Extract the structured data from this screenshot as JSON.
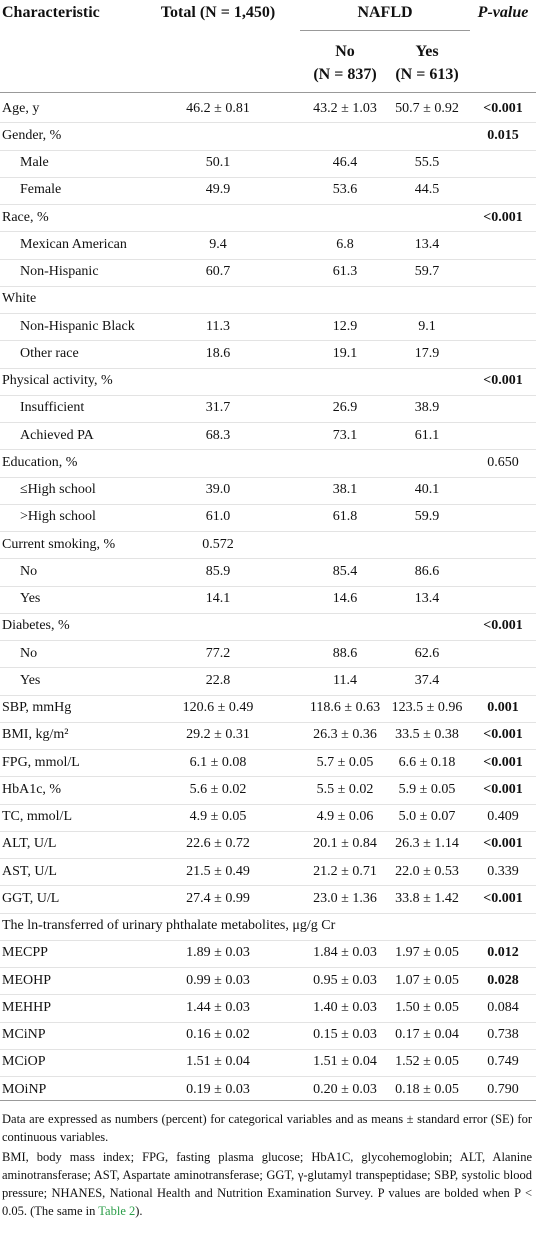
{
  "table": {
    "header": {
      "characteristic": "Characteristic",
      "total": "Total (N = 1,450)",
      "group": "NAFLD",
      "p": "P-value",
      "no": "No",
      "no_n": "(N = 837)",
      "yes": "Yes",
      "yes_n": "(N = 613)"
    },
    "rows": [
      {
        "label": "Age, y",
        "total": "46.2 ± 0.81",
        "no": "43.2 ± 1.03",
        "yes": "50.7 ± 0.92",
        "p": "<0.001",
        "p_bold": true
      },
      {
        "label": "Gender, %",
        "p": "0.015",
        "p_bold": true
      },
      {
        "label": "Male",
        "total": "50.1",
        "no": "46.4",
        "yes": "55.5",
        "indent": true
      },
      {
        "label": "Female",
        "total": "49.9",
        "no": "53.6",
        "yes": "44.5",
        "indent": true
      },
      {
        "label": "Race, %",
        "p": "<0.001",
        "p_bold": true
      },
      {
        "label": "Mexican American",
        "total": "9.4",
        "no": "6.8",
        "yes": "13.4",
        "indent": true
      },
      {
        "label": "Non-Hispanic",
        "total": "60.7",
        "no": "61.3",
        "yes": "59.7",
        "indent": true
      },
      {
        "label": "White"
      },
      {
        "label": "Non-Hispanic Black",
        "total": "11.3",
        "no": "12.9",
        "yes": "9.1",
        "indent": true
      },
      {
        "label": "Other race",
        "total": "18.6",
        "no": "19.1",
        "yes": "17.9",
        "indent": true
      },
      {
        "label": "Physical activity, %",
        "p": "<0.001",
        "p_bold": true
      },
      {
        "label": "Insufficient",
        "total": "31.7",
        "no": "26.9",
        "yes": "38.9",
        "indent": true
      },
      {
        "label": "Achieved PA",
        "total": "68.3",
        "no": "73.1",
        "yes": "61.1",
        "indent": true
      },
      {
        "label": "Education, %",
        "p": "0.650"
      },
      {
        "label": "≤High school",
        "total": "39.0",
        "no": "38.1",
        "yes": "40.1",
        "indent": true
      },
      {
        "label": ">High school",
        "total": "61.0",
        "no": "61.8",
        "yes": "59.9",
        "indent": true
      },
      {
        "label": "Current smoking, %",
        "total": "0.572"
      },
      {
        "label": "No",
        "total": "85.9",
        "no": "85.4",
        "yes": "86.6",
        "indent": true
      },
      {
        "label": "Yes",
        "total": "14.1",
        "no": "14.6",
        "yes": "13.4",
        "indent": true
      },
      {
        "label": "Diabetes, %",
        "p": "<0.001",
        "p_bold": true
      },
      {
        "label": "No",
        "total": "77.2",
        "no": "88.6",
        "yes": "62.6",
        "indent": true
      },
      {
        "label": "Yes",
        "total": "22.8",
        "no": "11.4",
        "yes": "37.4",
        "indent": true
      },
      {
        "label": "SBP, mmHg",
        "total": "120.6 ± 0.49",
        "no": "118.6 ± 0.63",
        "yes": "123.5 ± 0.96",
        "p": "0.001",
        "p_bold": true
      },
      {
        "label": "BMI, kg/m²",
        "total": "29.2 ± 0.31",
        "no": "26.3 ± 0.36",
        "yes": "33.5 ± 0.38",
        "p": "<0.001",
        "p_bold": true
      },
      {
        "label": "FPG, mmol/L",
        "total": "6.1 ± 0.08",
        "no": "5.7 ± 0.05",
        "yes": "6.6 ± 0.18",
        "p": "<0.001",
        "p_bold": true
      },
      {
        "label": "HbA1c, %",
        "total": "5.6 ± 0.02",
        "no": "5.5 ± 0.02",
        "yes": "5.9 ± 0.05",
        "p": "<0.001",
        "p_bold": true
      },
      {
        "label": "TC, mmol/L",
        "total": "4.9 ± 0.05",
        "no": "4.9 ± 0.06",
        "yes": "5.0 ± 0.07",
        "p": "0.409"
      },
      {
        "label": "ALT, U/L",
        "total": "22.6 ± 0.72",
        "no": "20.1 ± 0.84",
        "yes": "26.3 ± 1.14",
        "p": "<0.001",
        "p_bold": true
      },
      {
        "label": "AST, U/L",
        "total": "21.5 ± 0.49",
        "no": "21.2 ± 0.71",
        "yes": "22.0 ± 0.53",
        "p": "0.339"
      },
      {
        "label": "GGT, U/L",
        "total": "27.4 ± 0.99",
        "no": "23.0 ± 1.36",
        "yes": "33.8 ± 1.42",
        "p": "<0.001",
        "p_bold": true
      },
      {
        "label": "The ln-transferred of urinary phthalate metabolites, μg/g Cr"
      },
      {
        "label": "MECPP",
        "total": "1.89 ± 0.03",
        "no": "1.84 ± 0.03",
        "yes": "1.97 ± 0.05",
        "p": "0.012",
        "p_bold": true
      },
      {
        "label": "MEOHP",
        "total": "0.99 ± 0.03",
        "no": "0.95 ± 0.03",
        "yes": "1.07 ± 0.05",
        "p": "0.028",
        "p_bold": true
      },
      {
        "label": "MEHHP",
        "total": "1.44 ± 0.03",
        "no": "1.40 ± 0.03",
        "yes": "1.50 ± 0.05",
        "p": "0.084"
      },
      {
        "label": "MCiNP",
        "total": "0.16 ± 0.02",
        "no": "0.15 ± 0.03",
        "yes": "0.17 ± 0.04",
        "p": "0.738"
      },
      {
        "label": "MCiOP",
        "total": "1.51 ± 0.04",
        "no": "1.51 ± 0.04",
        "yes": "1.52 ± 0.05",
        "p": "0.749"
      },
      {
        "label": "MOiNP",
        "total": "0.19 ± 0.03",
        "no": "0.20 ± 0.03",
        "yes": "0.18 ± 0.05",
        "p": "0.790"
      }
    ],
    "footnotes": {
      "note1": "Data are expressed as numbers (percent) for categorical variables and as means ± standard error (SE) for continuous variables.",
      "note2": "BMI, body mass index; FPG, fasting plasma glucose; HbA1C, glycohemoglobin; ALT, Alanine aminotransferase; AST, Aspartate aminotransferase; GGT, γ-glutamyl transpeptidase; SBP, systolic blood pressure; NHANES, National Health and Nutrition Examination Survey. P values are bolded when P < 0.05. (The same in ",
      "link": "Table 2",
      "tail": ")."
    }
  }
}
